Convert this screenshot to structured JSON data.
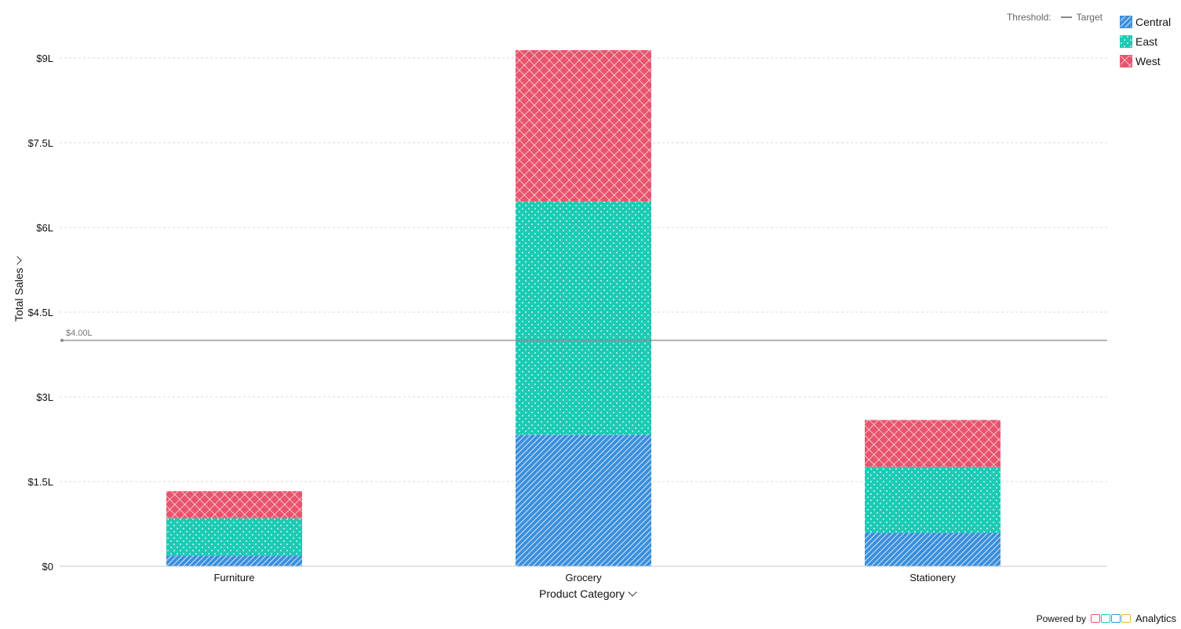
{
  "chart_data": {
    "type": "bar",
    "stacked": true,
    "categories": [
      "Furniture",
      "Grocery",
      "Stationery"
    ],
    "series": [
      {
        "name": "Central",
        "values": [
          0.19,
          2.33,
          0.59
        ],
        "color": "#3a8fdc",
        "pattern": "diagonal-lines"
      },
      {
        "name": "East",
        "values": [
          0.66,
          4.13,
          1.17
        ],
        "color": "#1ccbb3",
        "pattern": "dots"
      },
      {
        "name": "West",
        "values": [
          0.48,
          2.68,
          0.83
        ],
        "color": "#e8546e",
        "pattern": "crosshatch"
      }
    ],
    "ylim": [
      0,
      9
    ],
    "yticks": [
      0,
      1.5,
      3,
      4.5,
      6,
      7.5,
      9
    ],
    "ytick_labels": [
      "$0",
      "$1.5L",
      "$3L",
      "$4.5L",
      "$6L",
      "$7.5L",
      "$9L"
    ],
    "xlabel": "Product Category",
    "ylabel": "Total Sales",
    "grid": true,
    "threshold": {
      "value": 4.0,
      "label": "$4.00L",
      "name": "Target"
    },
    "legend_position": "top-right"
  },
  "threshold_legend": {
    "label": "Threshold:",
    "item": "Target"
  },
  "footer": {
    "powered_by": "Powered by",
    "product": "Analytics"
  },
  "colors": {
    "grid": "#d9d9d9",
    "axis": "#c8c8c8",
    "threshold": "#888888"
  }
}
